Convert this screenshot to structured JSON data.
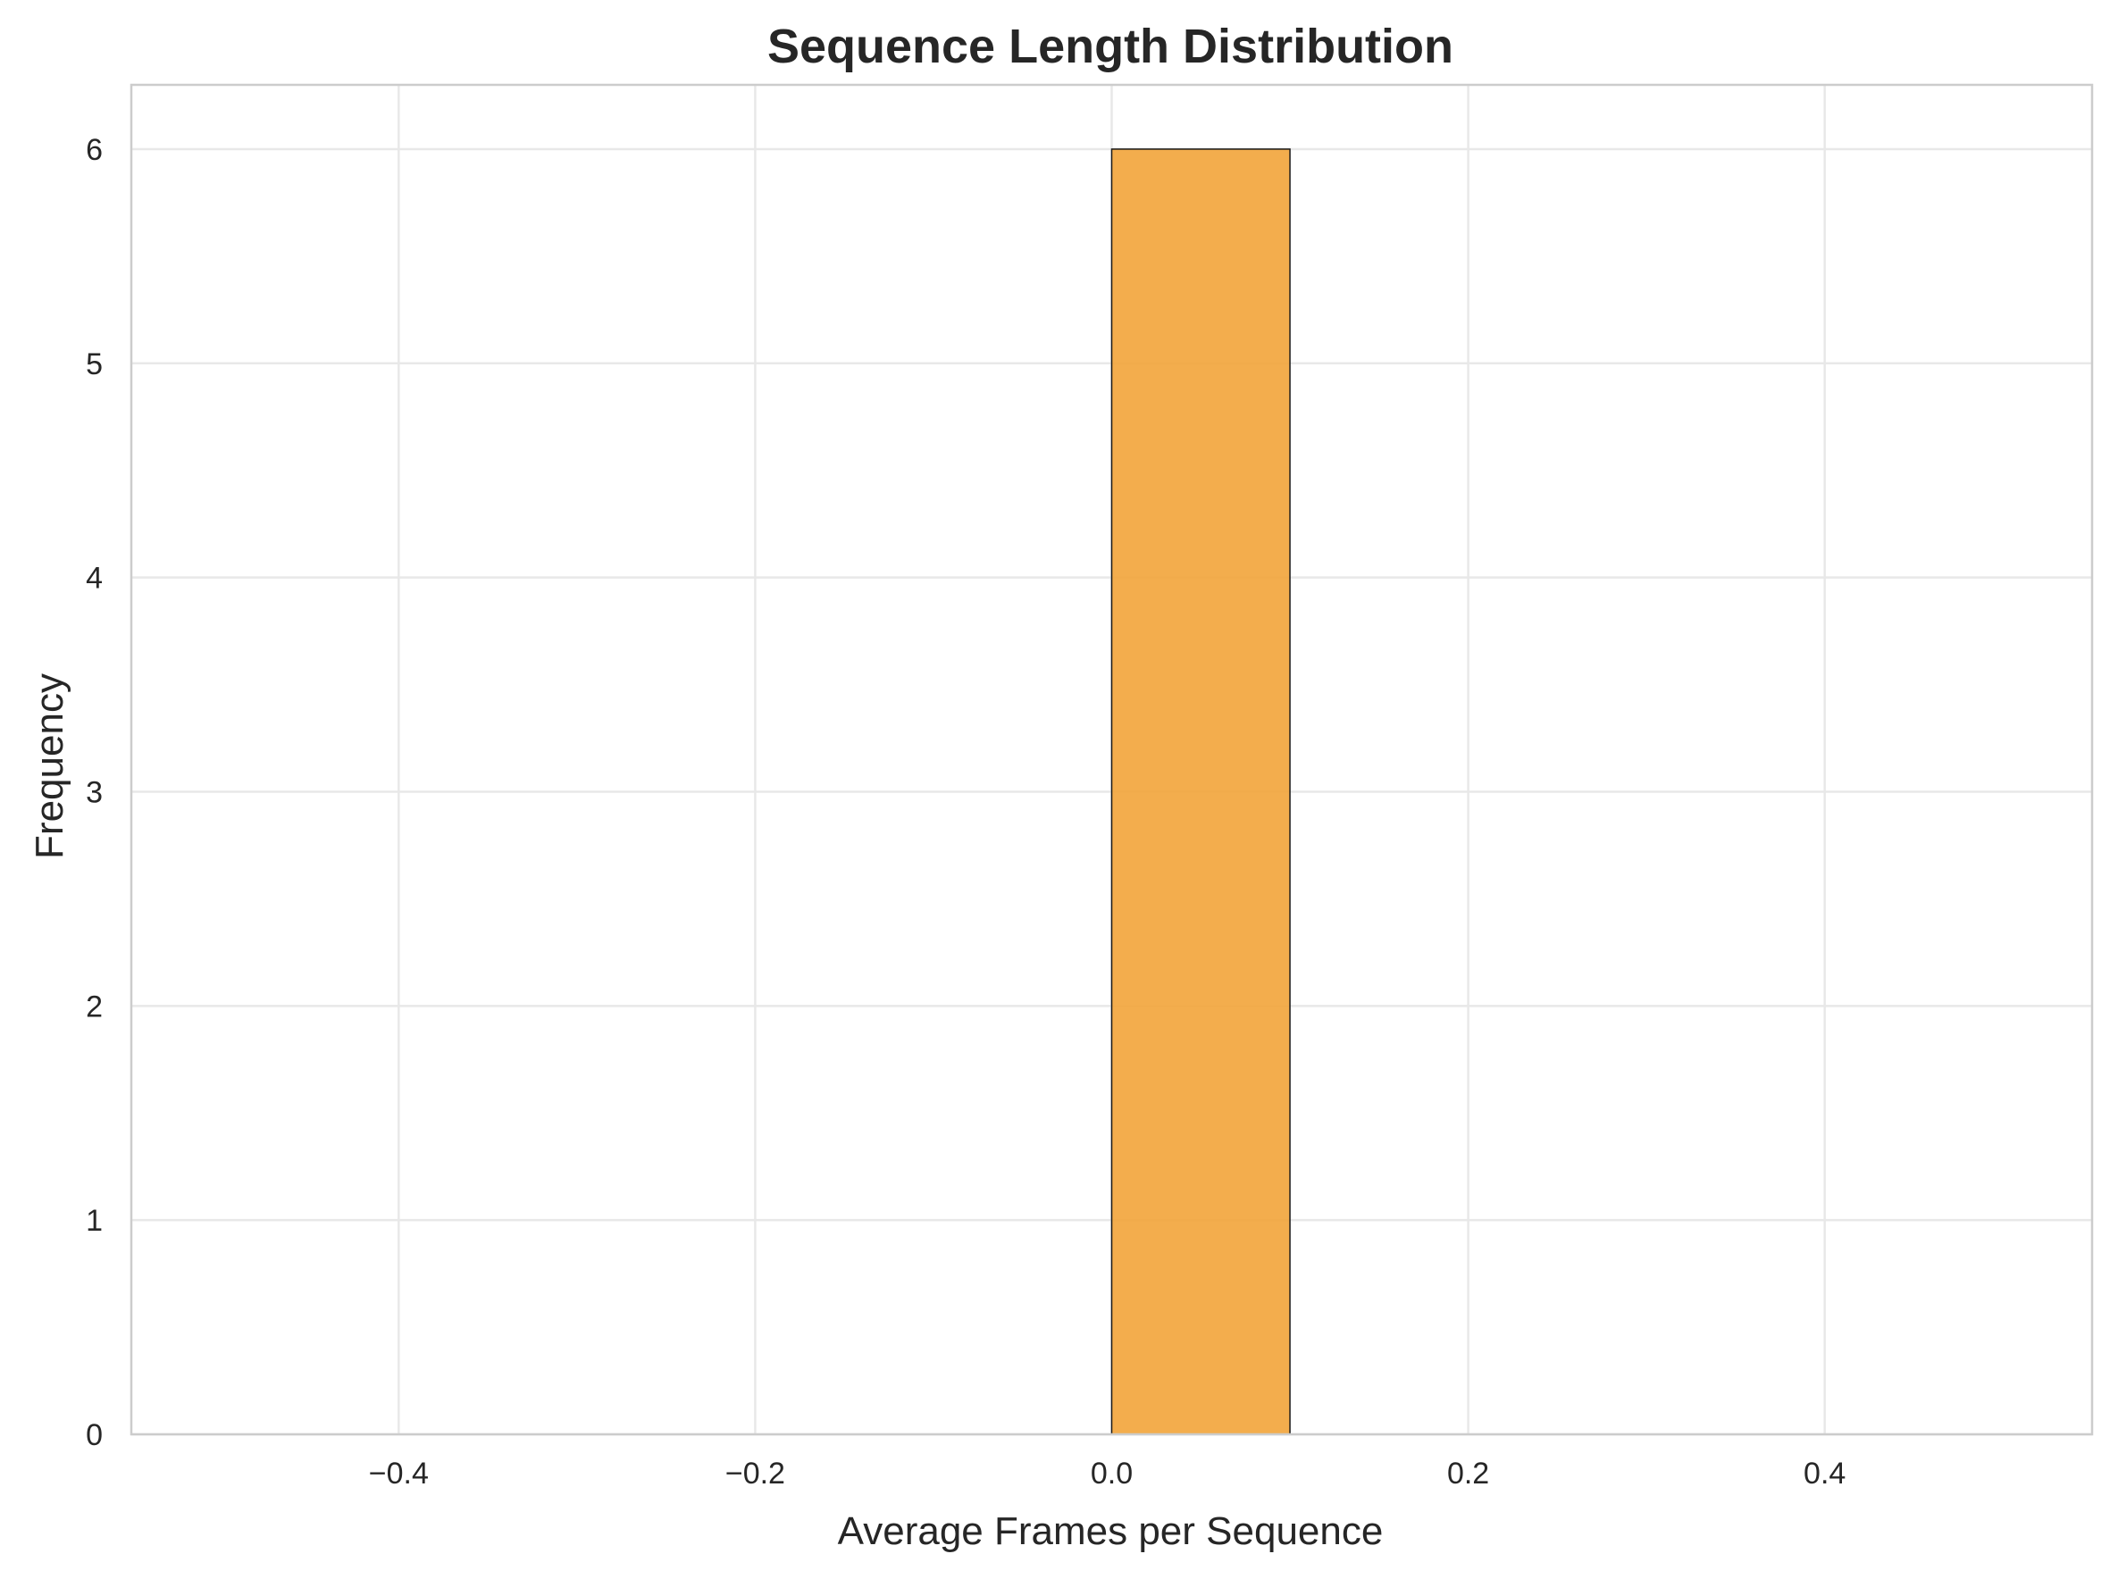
{
  "chart_data": {
    "type": "bar",
    "title": "Sequence Length Distribution",
    "xlabel": "Average Frames per Sequence",
    "ylabel": "Frequency",
    "xlim": [
      -0.55,
      0.55
    ],
    "ylim": [
      0,
      6.3
    ],
    "x_ticks": [
      -0.4,
      -0.2,
      0.0,
      0.2,
      0.4
    ],
    "x_tick_labels": [
      "−0.4",
      "−0.2",
      "0.0",
      "0.2",
      "0.4"
    ],
    "y_ticks": [
      0,
      1,
      2,
      3,
      4,
      5,
      6
    ],
    "y_tick_labels": [
      "0",
      "1",
      "2",
      "3",
      "4",
      "5",
      "6"
    ],
    "bins": [
      {
        "x_start": 0.0,
        "x_end": 0.1,
        "value": 6
      }
    ],
    "bar_color": "#f2a43a",
    "bar_edge_color": "#1a1a1a",
    "grid": true,
    "legend": "none"
  }
}
